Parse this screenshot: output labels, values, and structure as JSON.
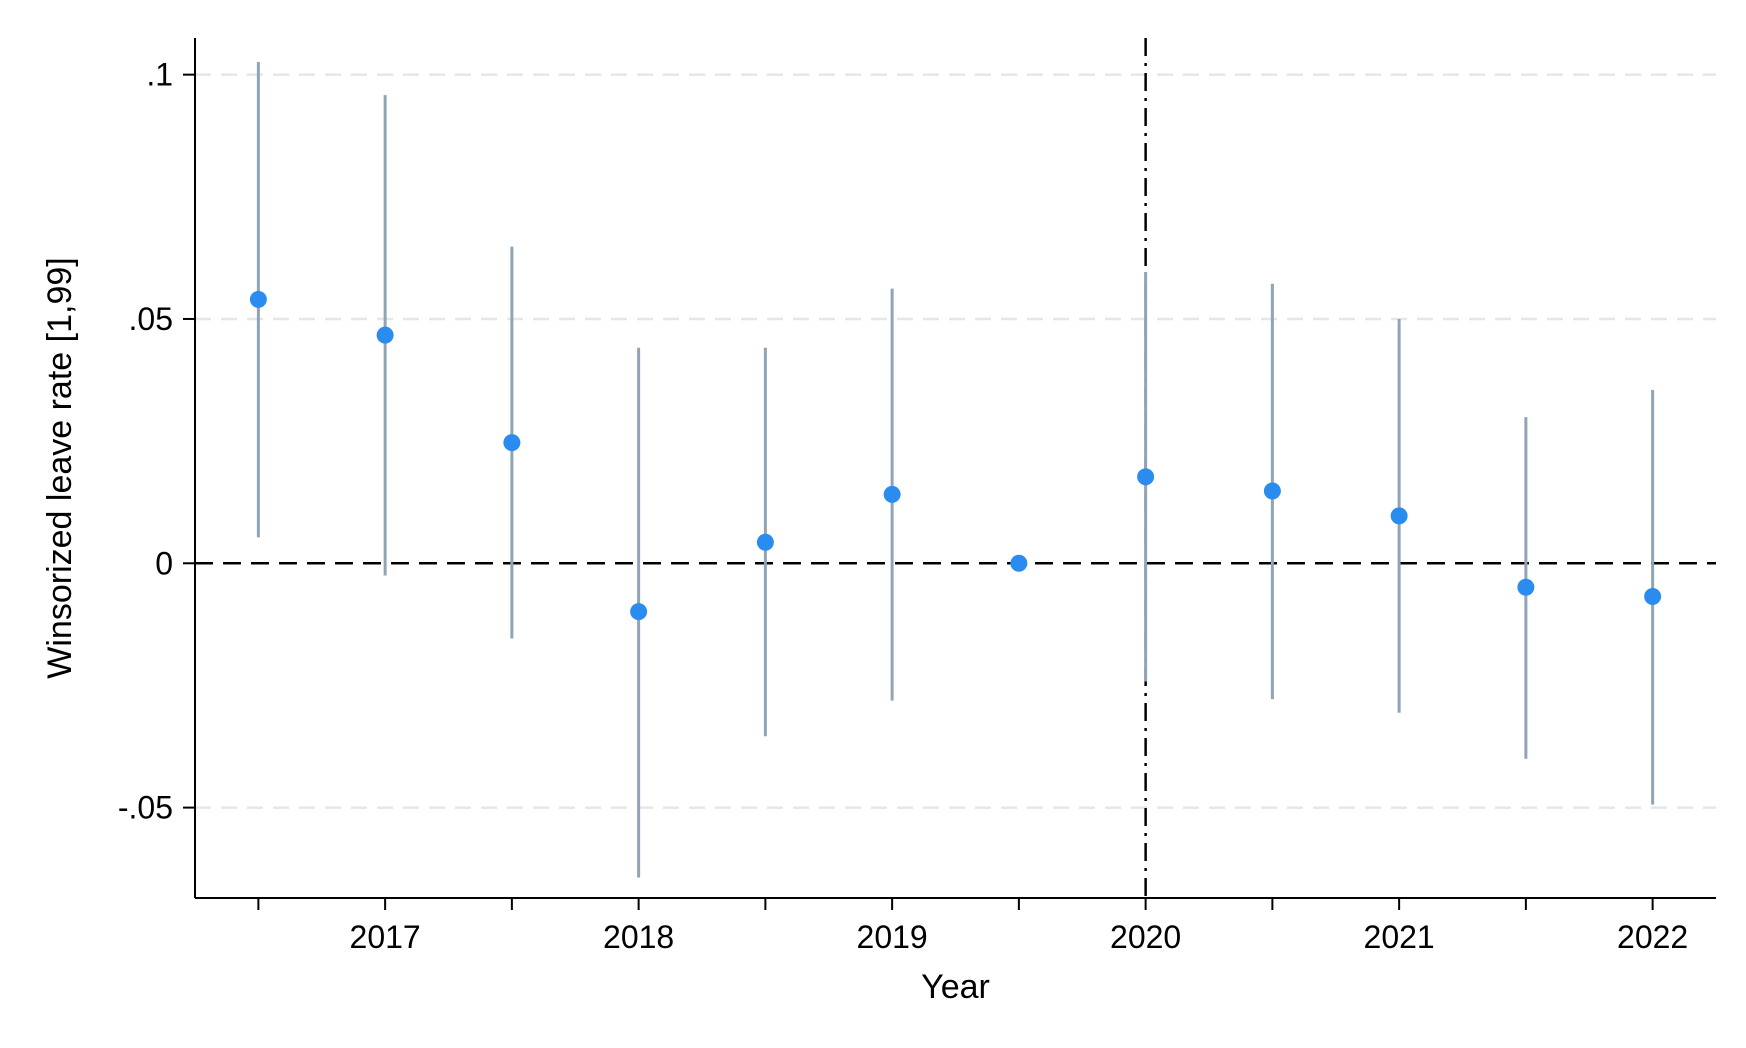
{
  "chart_data": {
    "type": "scatter",
    "title": "",
    "xlabel": "Year",
    "ylabel": "Winsorized leave rate [1,99]",
    "x_tick_labels": [
      "2017",
      "2018",
      "2019",
      "2020",
      "2021",
      "2022"
    ],
    "y_tick_labels": [
      ".1",
      ".05",
      "0",
      "-.05"
    ],
    "y_ticks": [
      0.1,
      0.05,
      0,
      -0.05
    ],
    "ylim": [
      -0.0685,
      0.1075
    ],
    "x_positions_note": "",
    "x": [
      2016.5,
      2017,
      2017.5,
      2018,
      2018.5,
      2019,
      2019.5,
      2020,
      2020.5,
      2021,
      2021.5,
      2022
    ],
    "xlim": [
      2016.25,
      2022.25
    ],
    "x_tick_values": [
      2017,
      2018,
      2019,
      2020,
      2021,
      2022
    ],
    "minor_x_ticks": [
      2016.5,
      2017.5,
      2018.5,
      2019.5,
      2020.5,
      2021.5
    ],
    "estimates": [
      0.054,
      0.0467,
      0.0247,
      -0.0099,
      0.0043,
      0.0141,
      0.0,
      0.0177,
      0.0148,
      0.0097,
      -0.0049,
      -0.0068
    ],
    "ci_lower": [
      0.0053,
      -0.0025,
      -0.0154,
      -0.0643,
      -0.0354,
      -0.0281,
      null,
      -0.0242,
      -0.0278,
      -0.0306,
      -0.04,
      -0.0494
    ],
    "ci_upper": [
      0.1026,
      0.0958,
      0.0648,
      0.0441,
      0.0441,
      0.0562,
      null,
      0.0596,
      0.0572,
      0.05,
      0.0299,
      0.0355
    ],
    "reference_lines": {
      "horizontal_y": 0,
      "horizontal_style": "dashed",
      "vertical_x": 2020,
      "vertical_style": "dash-dot"
    },
    "grid": "horizontal dashed",
    "colors": {
      "marker": "#2b8cf0",
      "ci": "#90a4b6",
      "grid": "#e6e6e6",
      "axis": "#000000"
    }
  }
}
